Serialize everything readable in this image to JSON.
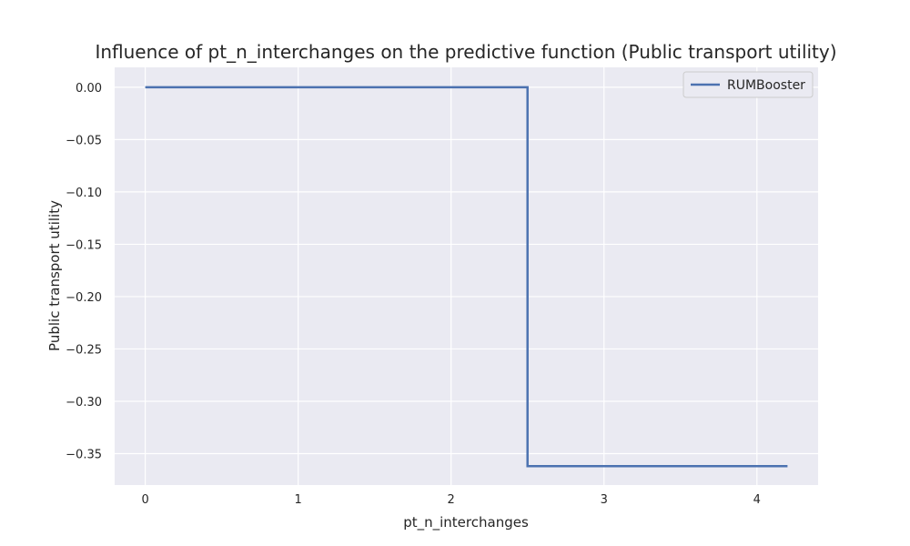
{
  "chart_data": {
    "type": "line",
    "title": "Influence of pt_n_interchanges on the predictive function (Public transport utility)",
    "xlabel": "pt_n_interchanges",
    "ylabel": "Public transport utility",
    "xlim": [
      -0.2,
      4.4
    ],
    "ylim": [
      -0.38,
      0.019
    ],
    "xticks": [
      0,
      1,
      2,
      3,
      4
    ],
    "xtick_labels": [
      "0",
      "1",
      "2",
      "3",
      "4"
    ],
    "yticks": [
      0.0,
      -0.05,
      -0.1,
      -0.15,
      -0.2,
      -0.25,
      -0.3,
      -0.35
    ],
    "ytick_labels": [
      "0.00",
      "−0.05",
      "−0.10",
      "−0.15",
      "−0.20",
      "−0.25",
      "−0.30",
      "−0.35"
    ],
    "grid": true,
    "legend_position": "top-right",
    "colors": {
      "background": "#EAEAF2",
      "grid": "#FFFFFF",
      "series": "#4C72B0"
    },
    "series": [
      {
        "name": "RUMBooster",
        "step": true,
        "x": [
          0,
          2.5,
          2.5,
          4.2
        ],
        "y": [
          0.0,
          0.0,
          -0.362,
          -0.362
        ]
      }
    ]
  }
}
